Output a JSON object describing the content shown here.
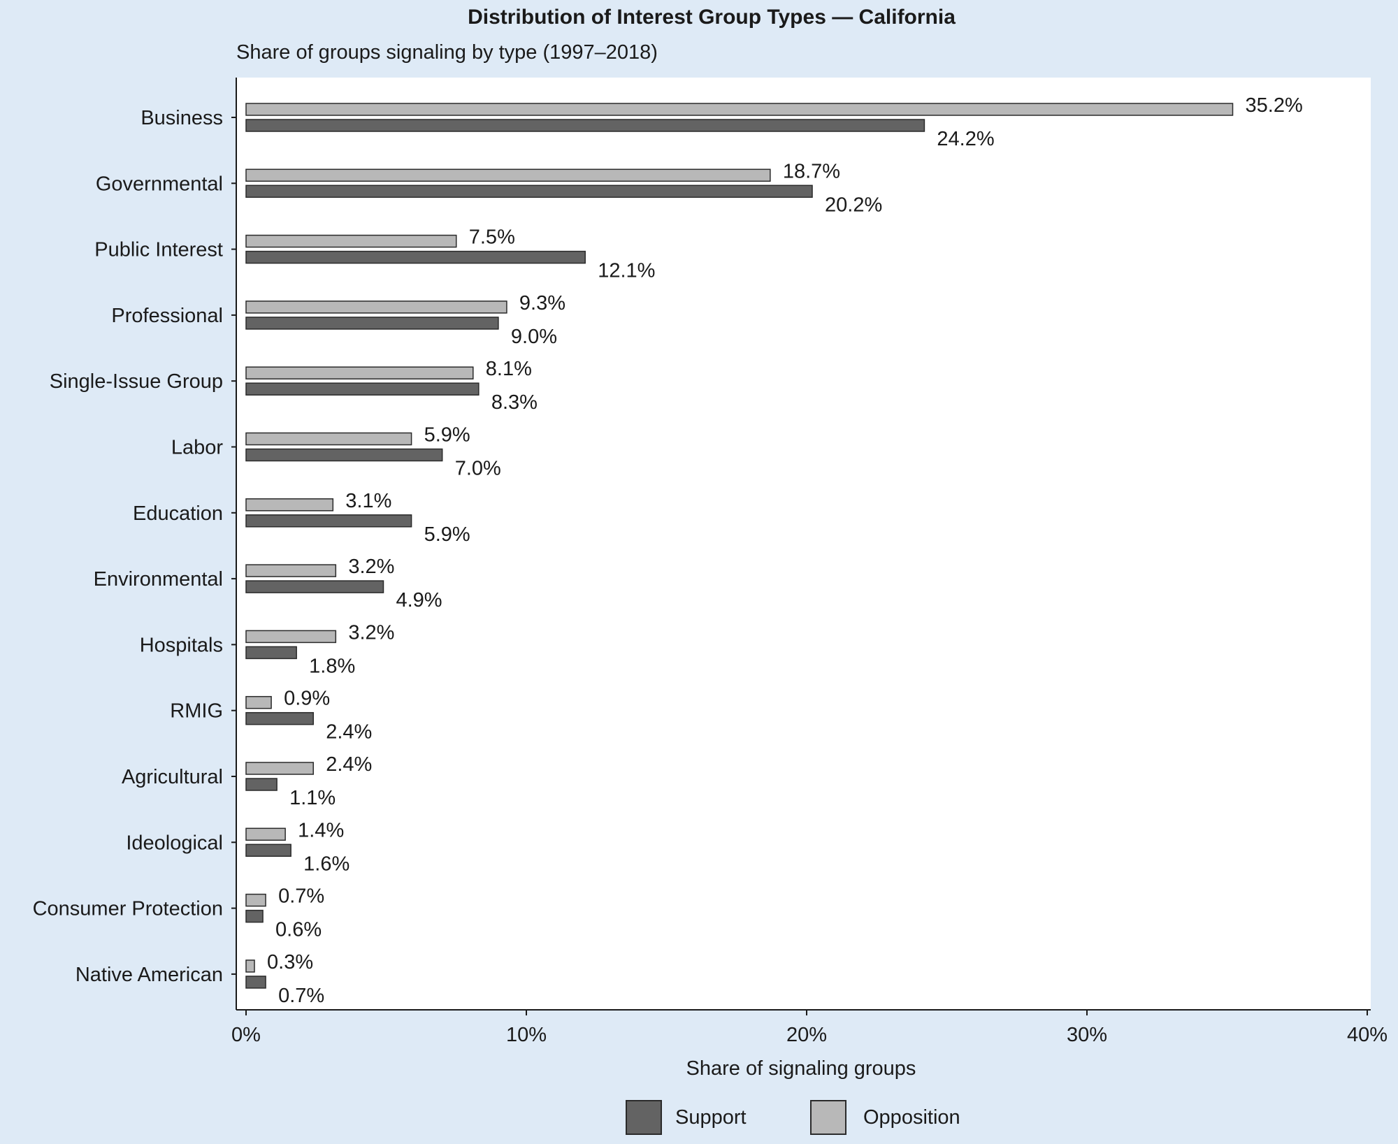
{
  "chart_data": {
    "type": "bar",
    "orientation": "horizontal",
    "title": "Distribution of Interest Group Types — California",
    "subtitle": "Share of groups signaling by type (1997–2018)",
    "xlabel": "Share of signaling groups",
    "ylabel": "",
    "xlim": [
      0,
      40
    ],
    "x_ticks": [
      "0%",
      "10%",
      "20%",
      "30%",
      "40%"
    ],
    "x_tick_values": [
      0,
      10,
      20,
      30,
      40
    ],
    "grid": false,
    "legend_position": "bottom",
    "categories": [
      "Business",
      "Governmental",
      "Public Interest",
      "Professional",
      "Single-Issue Group",
      "Labor",
      "Education",
      "Environmental",
      "Hospitals",
      "RMIG",
      "Agricultural",
      "Ideological",
      "Consumer Protection",
      "Native American"
    ],
    "series": [
      {
        "name": "Opposition",
        "color": "#b8b8b8",
        "values": [
          35.2,
          18.7,
          7.5,
          9.3,
          8.1,
          5.9,
          3.1,
          3.2,
          3.2,
          0.9,
          2.4,
          1.4,
          0.7,
          0.3
        ],
        "labels": [
          "35.2%",
          "18.7%",
          "7.5%",
          "9.3%",
          "8.1%",
          "5.9%",
          "3.1%",
          "3.2%",
          "3.2%",
          "0.9%",
          "2.4%",
          "1.4%",
          "0.7%",
          "0.3%"
        ]
      },
      {
        "name": "Support",
        "color": "#636363",
        "values": [
          24.2,
          20.2,
          12.1,
          9.0,
          8.3,
          7.0,
          5.9,
          4.9,
          1.8,
          2.4,
          1.1,
          1.6,
          0.6,
          0.7
        ],
        "labels": [
          "24.2%",
          "20.2%",
          "12.1%",
          "9.0%",
          "8.3%",
          "7.0%",
          "5.9%",
          "4.9%",
          "1.8%",
          "2.4%",
          "1.1%",
          "1.6%",
          "0.6%",
          "0.7%"
        ]
      }
    ],
    "legend": [
      {
        "name": "Support",
        "color": "#636363"
      },
      {
        "name": "Opposition",
        "color": "#b8b8b8"
      }
    ]
  }
}
